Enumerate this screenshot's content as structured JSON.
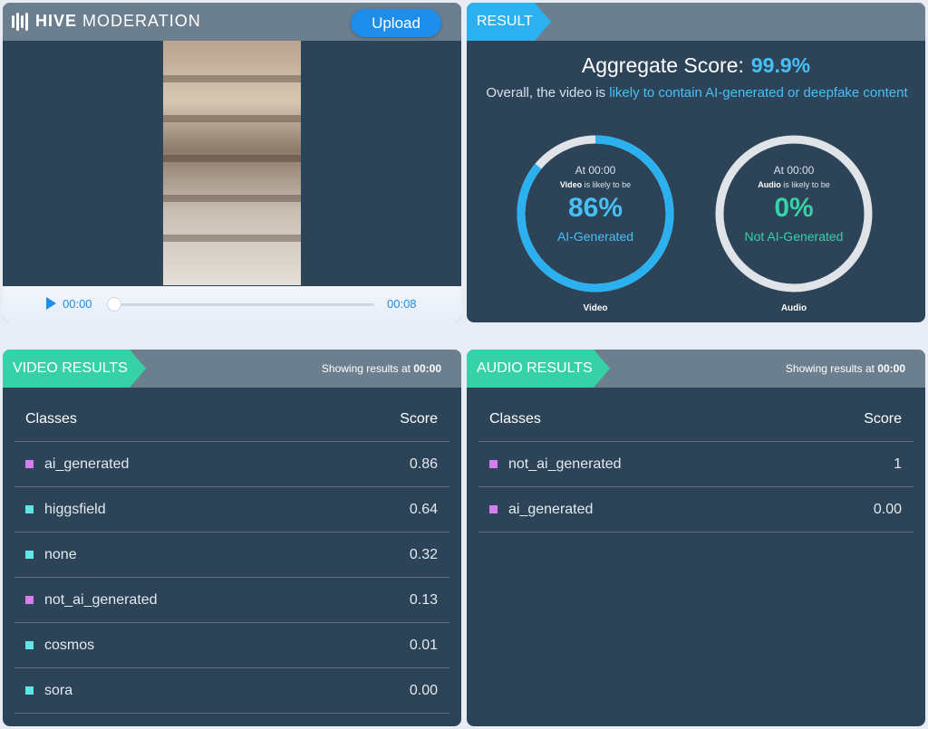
{
  "colors": {
    "accent_blue": "#2bb1f0",
    "accent_green": "#37d1a8",
    "panel": "#2c4358",
    "header": "#6c7f8f",
    "magenta": "#d67ef0",
    "cyan": "#5fe7e8"
  },
  "brand": {
    "strong": "HIVE",
    "rest": "MODERATION"
  },
  "player": {
    "upload_label": "Upload",
    "current_time": "00:00",
    "end_time": "00:08",
    "progress": 0
  },
  "result": {
    "tag": "RESULT",
    "aggregate_label": "Aggregate Score:",
    "aggregate_value": "99.9%",
    "desc_prefix": "Overall, the video is ",
    "desc_highlight": "likely to contain AI-generated or deepfake content",
    "video_ring": {
      "at": "At 00:00",
      "subject": "Video",
      "likely": " is likely to be",
      "pct": "86%",
      "label": "AI-Generated",
      "caption": "Video",
      "fraction": 0.86
    },
    "audio_ring": {
      "at": "At 00:00",
      "subject": "Audio",
      "likely": " is likely to be",
      "pct": "0%",
      "label": "Not AI-Generated",
      "caption": "Audio",
      "fraction": 0
    }
  },
  "video_results": {
    "tag": "VIDEO RESULTS",
    "showing_prefix": "Showing results at ",
    "showing_time": "00:00",
    "col_classes": "Classes",
    "col_score": "Score",
    "rows": [
      {
        "cls": "ai_generated",
        "score": "0.86",
        "color": "magenta"
      },
      {
        "cls": "higgsfield",
        "score": "0.64",
        "color": "cyan"
      },
      {
        "cls": "none",
        "score": "0.32",
        "color": "cyan"
      },
      {
        "cls": "not_ai_generated",
        "score": "0.13",
        "color": "magenta"
      },
      {
        "cls": "cosmos",
        "score": "0.01",
        "color": "cyan"
      },
      {
        "cls": "sora",
        "score": "0.00",
        "color": "cyan"
      }
    ]
  },
  "audio_results": {
    "tag": "AUDIO RESULTS",
    "showing_prefix": "Showing results at ",
    "showing_time": "00:00",
    "col_classes": "Classes",
    "col_score": "Score",
    "rows": [
      {
        "cls": "not_ai_generated",
        "score": "1",
        "color": "magenta"
      },
      {
        "cls": "ai_generated",
        "score": "0.00",
        "color": "magenta"
      }
    ]
  }
}
